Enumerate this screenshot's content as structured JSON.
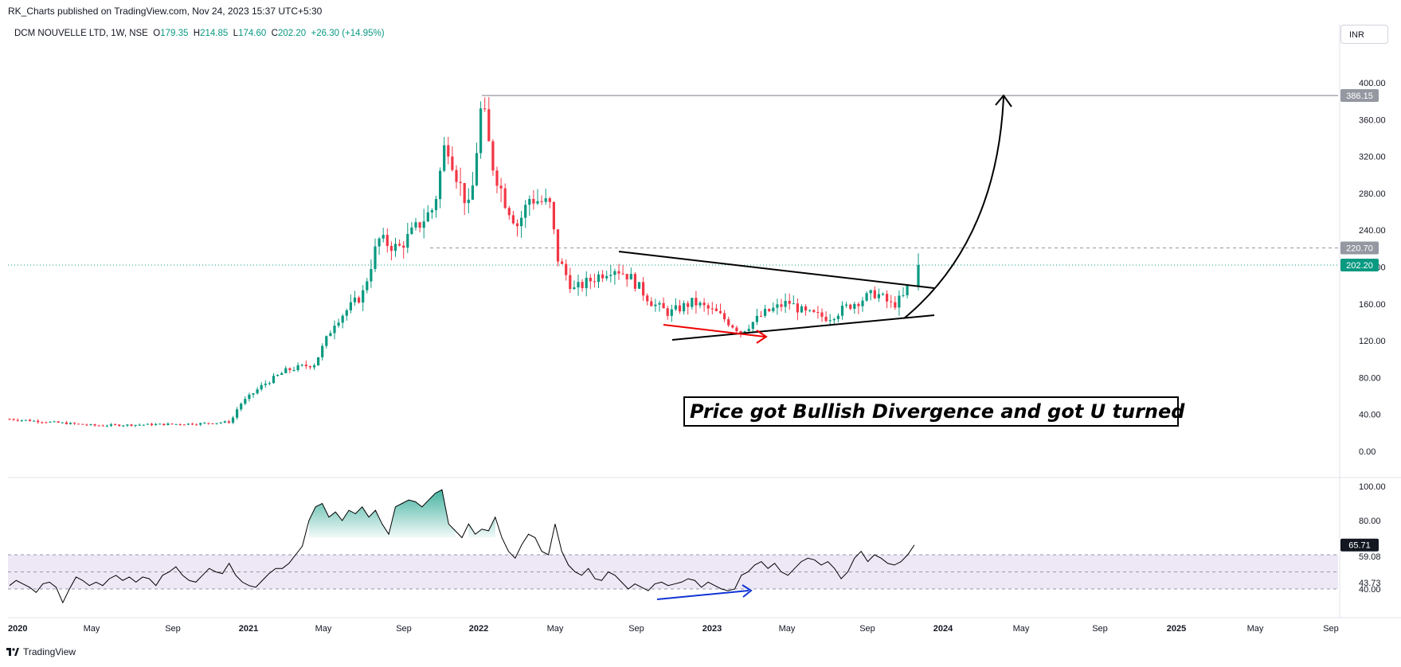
{
  "header": {
    "publisher": "RK_Charts published on TradingView.com, Nov 24, 2023 15:37 UTC+5:30",
    "symbol": "DCM NOUVELLE LTD, 1W, NSE",
    "o_label": "O",
    "o_value": "179.35",
    "h_label": "H",
    "h_value": "214.85",
    "l_label": "L",
    "l_value": "174.60",
    "c_label": "C",
    "c_value": "202.20",
    "change": "+26.30 (+14.95%)",
    "currency": "INR"
  },
  "brand": {
    "name": "TradingView"
  },
  "annotation": {
    "text": "Price got Bullish Divergence and got U turned"
  },
  "colors": {
    "up": "#089981",
    "down": "#f23645",
    "rsi_line": "#000000",
    "rsi_band": "#ede7f6",
    "price_line": "#089981"
  },
  "chart_data": [
    {
      "type": "candlestick",
      "title": "DCM NOUVELLE LTD, 1W, NSE",
      "ylim": [
        -10,
        420
      ],
      "y_ticks": [
        "400.00",
        "360.00",
        "320.00",
        "280.00",
        "240.00",
        "200.00",
        "160.00",
        "120.00",
        "80.00",
        "40.00",
        "0.00"
      ],
      "x_ticks": [
        "2020",
        "May",
        "Sep",
        "2021",
        "May",
        "Sep",
        "2022",
        "May",
        "Sep",
        "2023",
        "May",
        "Sep",
        "2024",
        "May",
        "Sep",
        "2025",
        "May",
        "Sep"
      ],
      "markers": [
        {
          "label": "386.15",
          "value": 386.15,
          "style": "gray"
        },
        {
          "label": "220.70",
          "value": 220.7,
          "style": "gray"
        },
        {
          "label": "202.20",
          "value": 202.2,
          "style": "green"
        }
      ],
      "series": [
        {
          "period": "2020-01 to 2020-11",
          "trend": "flat",
          "values": [
            35,
            32,
            30,
            28,
            27,
            26,
            25,
            26,
            27,
            28,
            30
          ]
        },
        {
          "period": "2020-12 to 2021-05",
          "trend": "up",
          "values": [
            40,
            55,
            65,
            75,
            80,
            85,
            95
          ]
        },
        {
          "period": "2021-05 to 2021-09",
          "trend": "up",
          "values": [
            120,
            150,
            170,
            210,
            235,
            220
          ]
        },
        {
          "period": "2021-09 to 2022-01",
          "trend": "up",
          "values": [
            240,
            280,
            330,
            345,
            300,
            386
          ]
        },
        {
          "period": "2022-01 to 2022-06",
          "trend": "down",
          "values": [
            340,
            300,
            260,
            280,
            240,
            215,
            175,
            165,
            185
          ]
        },
        {
          "period": "2022-06 to 2023-11",
          "trend": "consolidation",
          "values": [
            205,
            180,
            165,
            150,
            130,
            145,
            155,
            160,
            150,
            175,
            170,
            165,
            160,
            180
          ]
        },
        {
          "period": "2023-11",
          "trend": "breakout",
          "values": [
            202.2
          ]
        }
      ]
    },
    {
      "type": "line",
      "title": "RSI",
      "ylim": [
        35,
        100
      ],
      "y_ticks": [
        "100.00",
        "80.00"
      ],
      "markers": [
        {
          "label": "65.71",
          "value": 65.71,
          "style": "dark"
        },
        {
          "label": "59.08",
          "value": 59.08,
          "style": "plain"
        },
        {
          "label": "43.73",
          "value": 43.73,
          "style": "plain"
        },
        {
          "label": "40.00",
          "value": 40.0,
          "style": "plain"
        }
      ],
      "band": [
        40,
        60
      ],
      "values": [
        42,
        45,
        43,
        41,
        38,
        43,
        44,
        41,
        32,
        40,
        47,
        45,
        42,
        44,
        42,
        46,
        48,
        45,
        47,
        44,
        47,
        46,
        42,
        48,
        50,
        53,
        48,
        45,
        44,
        48,
        52,
        50,
        49,
        55,
        48,
        44,
        42,
        41,
        45,
        49,
        52,
        52,
        55,
        60,
        65,
        80,
        88,
        90,
        82,
        85,
        80,
        86,
        84,
        88,
        82,
        86,
        78,
        72,
        88,
        90,
        92,
        91,
        88,
        92,
        96,
        98,
        78,
        74,
        70,
        78,
        72,
        75,
        74,
        82,
        70,
        62,
        58,
        66,
        72,
        70,
        62,
        60,
        78,
        62,
        54,
        50,
        48,
        52,
        46,
        45,
        50,
        48,
        44,
        40,
        43,
        41,
        39,
        43,
        44,
        42,
        43,
        44,
        46,
        45,
        41,
        44,
        42,
        40,
        39,
        40,
        48,
        50,
        54,
        56,
        52,
        55,
        50,
        48,
        52,
        56,
        58,
        57,
        54,
        56,
        52,
        46,
        50,
        58,
        62,
        56,
        60,
        58,
        55,
        54,
        56,
        60,
        65.71
      ]
    }
  ]
}
